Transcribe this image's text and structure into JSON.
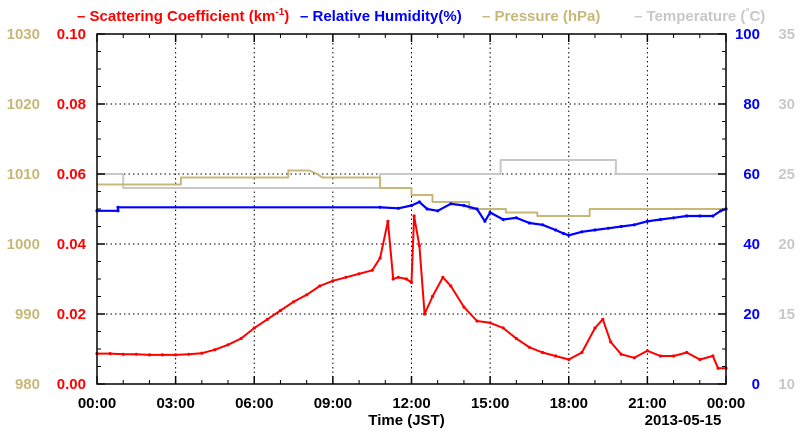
{
  "chart_data": {
    "type": "line",
    "date_label": "2013-05-15",
    "xlabel": "Time (JST)",
    "x_ticks": [
      "00:00",
      "03:00",
      "06:00",
      "09:00",
      "12:00",
      "15:00",
      "18:00",
      "21:00",
      "00:00"
    ],
    "x_range_hours": [
      0,
      24
    ],
    "legend": [
      {
        "dash": "–",
        "name_main": "Scattering Coefficient (km",
        "name_sup": "-1",
        "name_tail": ")",
        "color": "#ff0000"
      },
      {
        "dash": "–",
        "name_main": "Relative Humidity(%)",
        "name_sup": "",
        "name_tail": "",
        "color": "#0000ff"
      },
      {
        "dash": "–",
        "name_main": "Pressure (hPa)",
        "name_sup": "",
        "name_tail": "",
        "color": "#c8b878"
      },
      {
        "dash": "–",
        "name_main": "Temperature (",
        "name_sup": "°",
        "name_tail": "C)",
        "color": "#c8c8c8"
      }
    ],
    "axes": {
      "pressure": {
        "color": "#c8b878",
        "min": 980,
        "max": 1030,
        "ticks": [
          "980",
          "990",
          "1000",
          "1010",
          "1020",
          "1030"
        ]
      },
      "scattering": {
        "color": "#ff0000",
        "min": 0,
        "max": 0.1,
        "ticks": [
          "0.00",
          "0.02",
          "0.04",
          "0.06",
          "0.08",
          "0.10"
        ]
      },
      "humidity": {
        "color": "#0000ff",
        "min": 0,
        "max": 100,
        "ticks": [
          "0",
          "20",
          "40",
          "60",
          "80",
          "100"
        ]
      },
      "temperature": {
        "color": "#c8c8c8",
        "min": 10,
        "max": 35,
        "ticks": [
          "10",
          "15",
          "20",
          "25",
          "30",
          "35"
        ]
      }
    },
    "grid": true,
    "series": [
      {
        "key": "temperature",
        "color": "#c8c8c8",
        "markers": false,
        "x": [
          0,
          1.0,
          1.0,
          10.8,
          10.8,
          15.4,
          15.4,
          19.8,
          19.8,
          24
        ],
        "y": [
          25.0,
          25.0,
          24.0,
          24.0,
          25.0,
          25.0,
          26.0,
          26.0,
          25.0,
          25.0
        ]
      },
      {
        "key": "pressure",
        "color": "#c8b878",
        "markers": false,
        "x": [
          0,
          3.2,
          3.2,
          7.3,
          7.3,
          8.1,
          8.4,
          8.6,
          9.0,
          10.8,
          10.8,
          12.0,
          12.0,
          12.8,
          12.8,
          14.2,
          14.2,
          15.6,
          15.6,
          16.8,
          16.8,
          18.8,
          18.8,
          24
        ],
        "y": [
          1008.5,
          1008.5,
          1009.5,
          1009.5,
          1010.5,
          1010.5,
          1010.0,
          1009.5,
          1009.5,
          1009.5,
          1008.0,
          1008.0,
          1007.0,
          1007.0,
          1006.0,
          1006.0,
          1005.0,
          1005.0,
          1004.5,
          1004.5,
          1004.0,
          1004.0,
          1005.0,
          1005.0
        ]
      },
      {
        "key": "humidity",
        "color": "#0000ff",
        "markers": true,
        "x": [
          0,
          0.8,
          0.8,
          10.8,
          11.5,
          12.0,
          12.3,
          12.6,
          13.0,
          13.5,
          14.0,
          14.5,
          14.8,
          15.0,
          15.5,
          16.0,
          16.5,
          17.0,
          17.5,
          17.8,
          18.0,
          18.5,
          19.0,
          19.5,
          20.0,
          20.5,
          21.0,
          21.5,
          22.0,
          22.5,
          23.0,
          23.5,
          23.8,
          24
        ],
        "y": [
          49.5,
          49.5,
          50.5,
          50.5,
          50.2,
          51.0,
          52.0,
          50.0,
          49.5,
          51.5,
          51.0,
          50.0,
          46.5,
          49.0,
          47.0,
          47.5,
          46.0,
          45.5,
          44.0,
          43.0,
          42.5,
          43.5,
          44.0,
          44.5,
          45.0,
          45.5,
          46.5,
          47.0,
          47.5,
          48.0,
          48.0,
          48.0,
          49.5,
          50.0
        ]
      },
      {
        "key": "scattering",
        "color": "#ff0000",
        "markers": true,
        "x": [
          0,
          0.5,
          1.0,
          1.5,
          2.0,
          2.5,
          3.0,
          3.5,
          4.0,
          4.5,
          5.0,
          5.5,
          6.0,
          6.5,
          7.0,
          7.5,
          8.0,
          8.5,
          9.0,
          9.5,
          10.0,
          10.5,
          10.8,
          11.1,
          11.3,
          11.5,
          11.8,
          12.0,
          12.1,
          12.3,
          12.5,
          12.8,
          13.2,
          13.5,
          14.0,
          14.5,
          15.0,
          15.5,
          16.0,
          16.5,
          17.0,
          17.5,
          18.0,
          18.5,
          19.0,
          19.3,
          19.6,
          20.0,
          20.5,
          21.0,
          21.5,
          22.0,
          22.5,
          23.0,
          23.5,
          23.7,
          24.0
        ],
        "y": [
          0.0087,
          0.0087,
          0.0085,
          0.0085,
          0.0083,
          0.0083,
          0.0083,
          0.0085,
          0.0088,
          0.0098,
          0.0112,
          0.013,
          0.016,
          0.0185,
          0.021,
          0.0235,
          0.0255,
          0.028,
          0.0295,
          0.0305,
          0.0315,
          0.0325,
          0.036,
          0.0465,
          0.03,
          0.0305,
          0.03,
          0.029,
          0.048,
          0.0395,
          0.02,
          0.025,
          0.0305,
          0.028,
          0.022,
          0.018,
          0.0175,
          0.016,
          0.013,
          0.0105,
          0.009,
          0.008,
          0.007,
          0.009,
          0.016,
          0.0185,
          0.012,
          0.0085,
          0.0075,
          0.0095,
          0.008,
          0.008,
          0.009,
          0.007,
          0.008,
          0.0045,
          0.0045
        ]
      }
    ]
  }
}
